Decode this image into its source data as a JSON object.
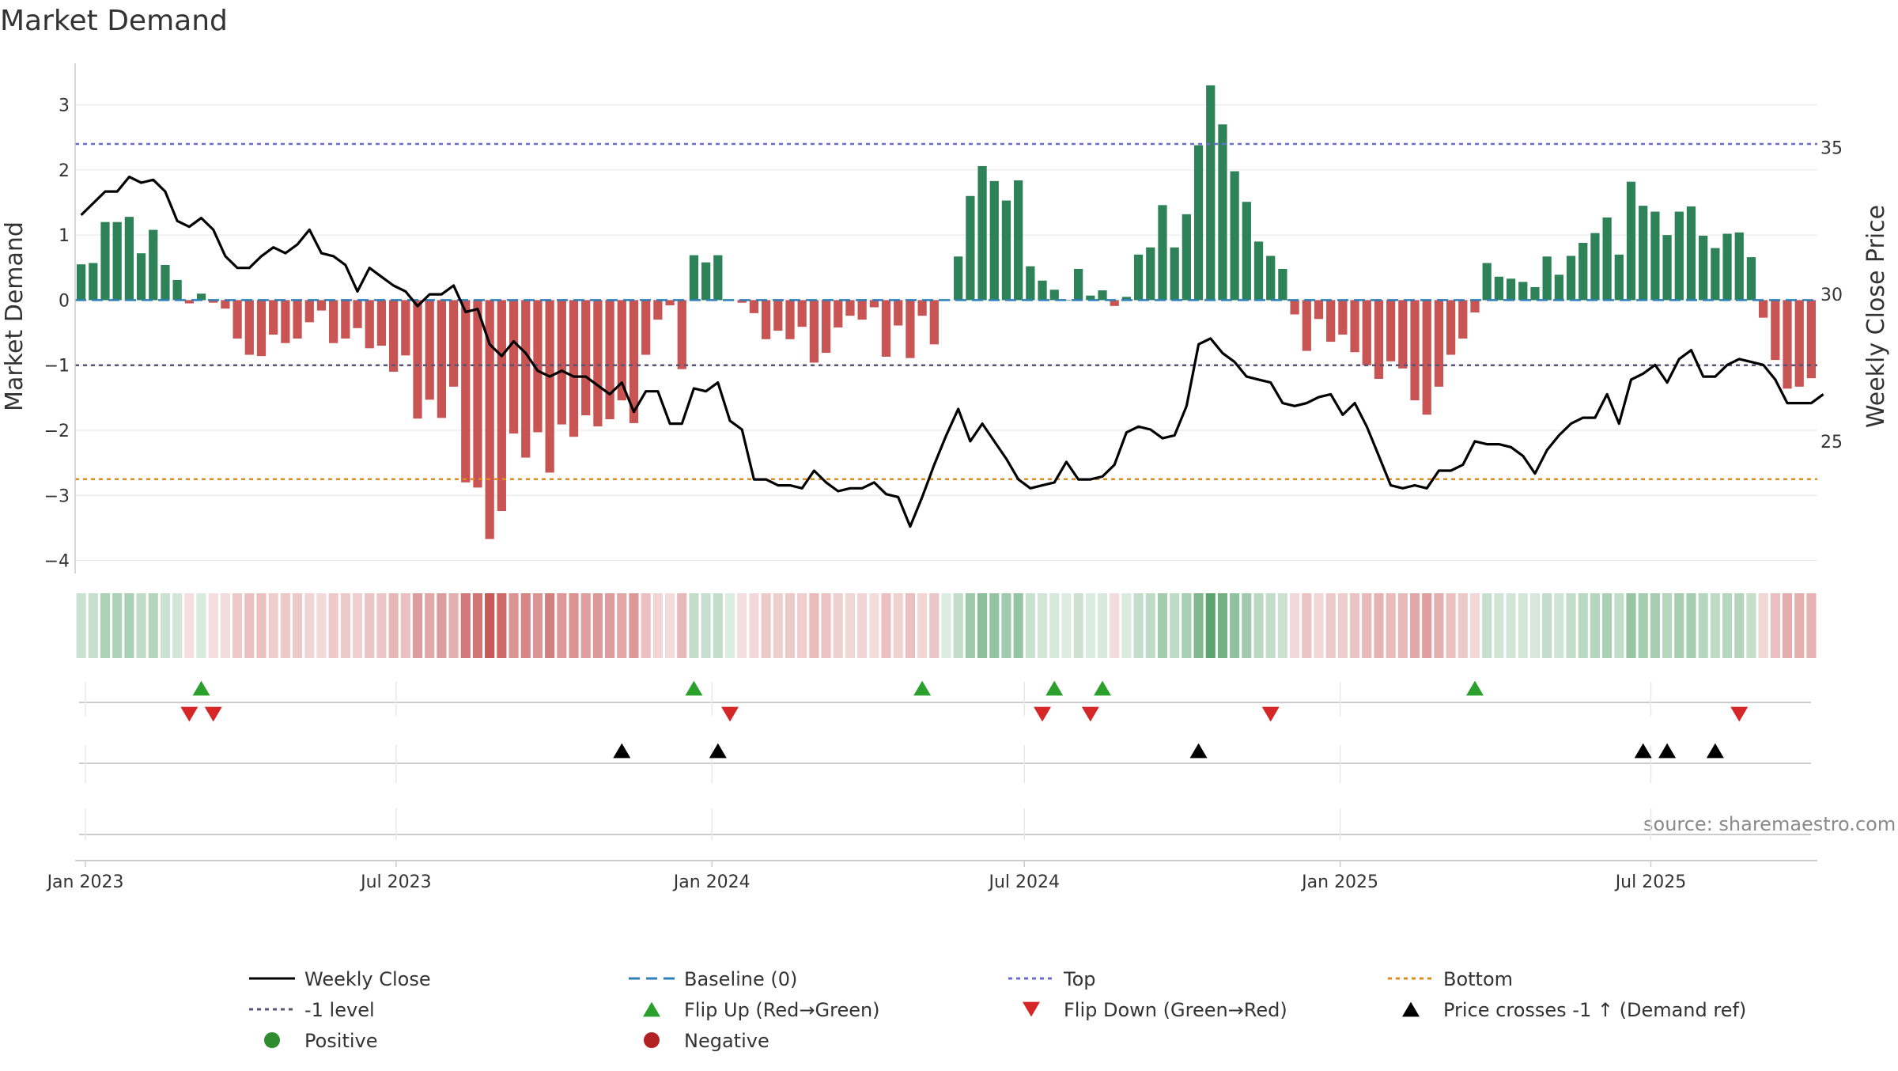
{
  "chart_data": {
    "type": "bar+line",
    "title": "Market Demand",
    "ylabel_left": "Market Demand",
    "ylabel_right": "Weekly Close Price",
    "ylim_left": [
      -4.2,
      3.7
    ],
    "yticks_left": [
      "3",
      "2",
      "1",
      "0",
      "−1",
      "−2",
      "−3",
      "−4"
    ],
    "ytick_values_left": [
      3,
      2,
      1,
      0,
      -1,
      -2,
      -3,
      -4
    ],
    "ylim_right": [
      20.5,
      38
    ],
    "yticks_right": [
      "35",
      "30",
      "25"
    ],
    "ytick_values_right": [
      35,
      30,
      25
    ],
    "start_date": "2022-12-26",
    "week_count": 145,
    "x_ticks": [
      {
        "label": "Jan 2023",
        "date": "2023-01-01"
      },
      {
        "label": "Jul 2023",
        "date": "2023-07-01"
      },
      {
        "label": "Jan 2024",
        "date": "2024-01-01"
      },
      {
        "label": "Jul 2024",
        "date": "2024-07-01"
      },
      {
        "label": "Jan 2025",
        "date": "2025-01-01"
      },
      {
        "label": "Jul 2025",
        "date": "2025-07-01"
      }
    ],
    "levels": {
      "top": 2.4,
      "minus_one": -1.0,
      "bottom": -2.75,
      "baseline": 0
    },
    "demand": [
      0.55,
      0.57,
      1.2,
      1.2,
      1.28,
      0.72,
      1.08,
      0.54,
      0.31,
      -0.05,
      0.1,
      -0.04,
      -0.13,
      -0.59,
      -0.84,
      -0.86,
      -0.53,
      -0.66,
      -0.59,
      -0.34,
      -0.16,
      -0.66,
      -0.59,
      -0.43,
      -0.74,
      -0.7,
      -1.1,
      -0.85,
      -1.82,
      -1.53,
      -1.81,
      -1.33,
      -2.8,
      -2.88,
      -3.67,
      -3.24,
      -2.05,
      -2.42,
      -2.03,
      -2.65,
      -1.91,
      -2.1,
      -1.77,
      -1.94,
      -1.83,
      -1.54,
      -1.89,
      -0.84,
      -0.3,
      -0.08,
      -1.06,
      0.69,
      0.58,
      0.69,
      0.0,
      -0.04,
      -0.2,
      -0.6,
      -0.47,
      -0.6,
      -0.41,
      -0.96,
      -0.81,
      -0.42,
      -0.24,
      -0.3,
      -0.11,
      -0.87,
      -0.39,
      -0.89,
      -0.24,
      -0.68,
      0.0,
      0.67,
      1.6,
      2.06,
      1.83,
      1.53,
      1.84,
      0.52,
      0.3,
      0.16,
      0.0,
      0.48,
      0.07,
      0.15,
      -0.09,
      0.05,
      0.7,
      0.81,
      1.46,
      0.81,
      1.32,
      2.38,
      3.3,
      2.7,
      1.98,
      1.51,
      0.9,
      0.68,
      0.48,
      -0.22,
      -0.78,
      -0.29,
      -0.64,
      -0.53,
      -0.8,
      -1.0,
      -1.21,
      -0.94,
      -1.05,
      -1.54,
      -1.76,
      -1.33,
      -0.84,
      -0.59,
      -0.19,
      0.57,
      0.36,
      0.33,
      0.28,
      0.2,
      0.67,
      0.39,
      0.68,
      0.88,
      1.03,
      1.27,
      0.7,
      1.82,
      1.45,
      1.36,
      1.0,
      1.36,
      1.44,
      0.99,
      0.8,
      1.02,
      1.04,
      0.66,
      -0.27,
      -0.92,
      -1.36,
      -1.33,
      -1.2
    ],
    "close": [
      32.7,
      33.1,
      33.5,
      33.5,
      34.0,
      33.8,
      33.9,
      33.5,
      32.5,
      32.3,
      32.6,
      32.2,
      31.3,
      30.9,
      30.9,
      31.3,
      31.6,
      31.4,
      31.7,
      32.2,
      31.4,
      31.3,
      31.0,
      30.1,
      30.9,
      30.6,
      30.3,
      30.1,
      29.6,
      30.0,
      30.0,
      30.3,
      29.4,
      29.5,
      28.3,
      27.9,
      28.4,
      28.0,
      27.4,
      27.2,
      27.4,
      27.2,
      27.2,
      26.9,
      26.6,
      27.0,
      26.0,
      26.7,
      26.7,
      25.6,
      25.6,
      26.8,
      26.7,
      27.0,
      25.7,
      25.4,
      23.7,
      23.7,
      23.5,
      23.5,
      23.4,
      24.0,
      23.6,
      23.3,
      23.4,
      23.4,
      23.6,
      23.2,
      23.1,
      22.1,
      23.1,
      24.2,
      25.2,
      26.1,
      25.0,
      25.6,
      25.0,
      24.4,
      23.7,
      23.4,
      23.5,
      23.6,
      24.3,
      23.7,
      23.7,
      23.8,
      24.2,
      25.3,
      25.5,
      25.4,
      25.1,
      25.2,
      26.2,
      28.3,
      28.5,
      28.0,
      27.7,
      27.2,
      27.1,
      27.0,
      26.3,
      26.2,
      26.3,
      26.5,
      26.6,
      25.9,
      26.3,
      25.5,
      24.5,
      23.5,
      23.4,
      23.5,
      23.4,
      24.0,
      24.0,
      24.2,
      25.0,
      24.9,
      24.9,
      24.8,
      24.5,
      23.9,
      24.7,
      25.2,
      25.6,
      25.8,
      25.8,
      26.6,
      25.6,
      27.1,
      27.3,
      27.6,
      27.0,
      27.8,
      28.1,
      27.2,
      27.2,
      27.6,
      27.8,
      27.7,
      27.6,
      27.1,
      26.3,
      26.3,
      26.3,
      26.6
    ],
    "flip_up_weeks": [
      10,
      51,
      70,
      81,
      85,
      116
    ],
    "flip_down_weeks": [
      9,
      11,
      54,
      80,
      84,
      99,
      138
    ],
    "price_cross_weeks": [
      45,
      53,
      93,
      130,
      132,
      136
    ],
    "legend": [
      {
        "label": "Weekly Close",
        "kind": "solid-line",
        "color": "#000000"
      },
      {
        "label": "Baseline (0)",
        "kind": "dash-line",
        "color": "#2e7fb8"
      },
      {
        "label": "Top",
        "kind": "dot-line",
        "color": "#6a6ad8"
      },
      {
        "label": "Bottom",
        "kind": "dot-line",
        "color": "#e28a1a"
      },
      {
        "label": "-1 level",
        "kind": "dot-line",
        "color": "#555577"
      },
      {
        "label": "Flip Up (Red→Green)",
        "kind": "triangle-up",
        "color": "#2ca02c"
      },
      {
        "label": "Flip Down (Green→Red)",
        "kind": "triangle-down",
        "color": "#d62728"
      },
      {
        "label": "Price crosses -1 ↑ (Demand ref)",
        "kind": "triangle-up",
        "color": "#000000"
      },
      {
        "label": "Positive",
        "kind": "circle",
        "color": "#2e8b2e"
      },
      {
        "label": "Negative",
        "kind": "circle",
        "color": "#b22222"
      }
    ]
  },
  "colors": {
    "positive_bar": "#2e8257",
    "negative_bar": "#c85454",
    "grid": "#e6e6e6",
    "axis": "#cccccc",
    "top": "#6a6ad8",
    "bottom": "#e28a1a",
    "minus_one": "#555577",
    "baseline": "#2e7fb8",
    "flip_up": "#2ca02c",
    "flip_down": "#d62728",
    "cross": "#000000"
  },
  "source": "source: sharemaestro.com"
}
